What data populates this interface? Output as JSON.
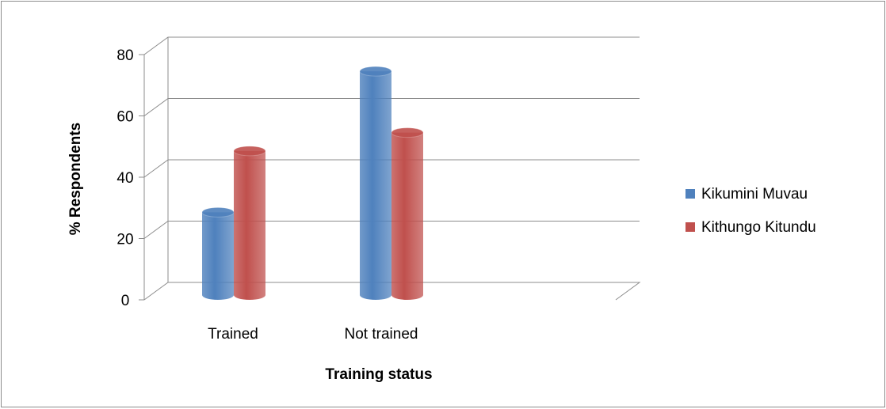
{
  "chart_data": {
    "type": "bar",
    "title": "",
    "xlabel": "Training status",
    "ylabel": "% Respondents",
    "categories": [
      "Trained",
      "Not trained"
    ],
    "series": [
      {
        "name": "Kikumini Muvau",
        "values": [
          27,
          73
        ],
        "color": "#4f81bd"
      },
      {
        "name": "Kithungo Kitundu",
        "values": [
          47,
          53
        ],
        "color": "#c0504d"
      }
    ],
    "ylim": [
      0,
      80
    ],
    "yticks": [
      0,
      20,
      40,
      60,
      80
    ],
    "grid": true,
    "style": "3d-cylinder",
    "legend_position": "right"
  }
}
